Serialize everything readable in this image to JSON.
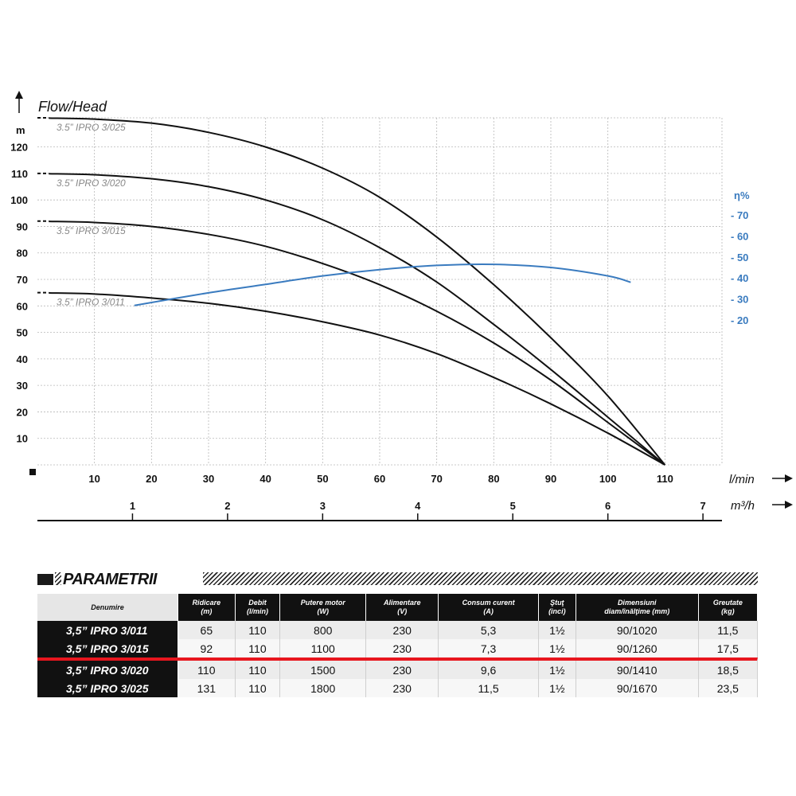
{
  "chart_data": {
    "type": "line",
    "title": "Flow/Head",
    "ylabel": "m",
    "y2label": "η%",
    "xlabel": "l/min",
    "x2label": "m³/h",
    "xlim": [
      0,
      120
    ],
    "ylim": [
      0,
      131
    ],
    "x_ticks": [
      10,
      20,
      30,
      40,
      50,
      60,
      70,
      80,
      90,
      100,
      110
    ],
    "y_ticks": [
      10,
      20,
      30,
      40,
      50,
      60,
      70,
      80,
      90,
      100,
      110,
      120
    ],
    "x2_ticks": [
      "1",
      "2",
      "3",
      "4",
      "5",
      "6",
      "7"
    ],
    "y2_ticks": [
      "- 70",
      "- 60",
      "- 50",
      "- 40",
      "- 30",
      "- 20"
    ],
    "grid": true,
    "series": [
      {
        "name": "3.5” IPRO 3/025",
        "shutoff": 131,
        "x": [
          0,
          10,
          20,
          30,
          40,
          50,
          60,
          70,
          80,
          90,
          100,
          110
        ],
        "y": [
          131,
          130.5,
          129,
          125.5,
          120,
          112,
          101,
          86,
          68,
          48,
          26,
          0
        ]
      },
      {
        "name": "3.5” IPRO 3/020",
        "shutoff": 110,
        "x": [
          0,
          10,
          20,
          30,
          40,
          50,
          60,
          70,
          80,
          90,
          100,
          110
        ],
        "y": [
          110,
          109.5,
          108,
          105,
          100,
          92.5,
          82,
          69,
          53,
          36,
          18,
          0
        ]
      },
      {
        "name": "3.5” IPRO 3/015",
        "shutoff": 92,
        "x": [
          0,
          10,
          20,
          30,
          40,
          50,
          60,
          70,
          80,
          90,
          100,
          110
        ],
        "y": [
          92,
          91.5,
          90,
          87,
          82.5,
          76,
          68,
          58,
          46,
          32,
          16,
          0
        ]
      },
      {
        "name": "3.5” IPRO 3/011",
        "shutoff": 65,
        "x": [
          0,
          10,
          20,
          30,
          40,
          50,
          60,
          70,
          80,
          90,
          100,
          110
        ],
        "y": [
          65,
          64.5,
          63,
          61,
          58,
          54,
          49,
          42,
          33,
          23,
          12,
          0
        ]
      }
    ],
    "efficiency": {
      "x": [
        17,
        30,
        40,
        50,
        60,
        70,
        80,
        90,
        100,
        104
      ],
      "eta": [
        30,
        36,
        40,
        44,
        47,
        49,
        49.5,
        48,
        44,
        41
      ]
    }
  },
  "params": {
    "title": "PARAMETRII",
    "headers": [
      {
        "l1": "Denumire",
        "l2": ""
      },
      {
        "l1": "Ridicare",
        "l2": "(m)"
      },
      {
        "l1": "Debit",
        "l2": "(l/min)"
      },
      {
        "l1": "Putere motor",
        "l2": "(W)"
      },
      {
        "l1": "Alimentare",
        "l2": "(V)"
      },
      {
        "l1": "Consum curent",
        "l2": "(A)"
      },
      {
        "l1": "Ştuţ",
        "l2": "(inci)"
      },
      {
        "l1": "Dimensiuni",
        "l2": "diam/înălţime (mm)"
      },
      {
        "l1": "Greutate",
        "l2": "(kg)"
      }
    ],
    "rows": [
      {
        "name": "3,5” IPRO 3/011",
        "values": [
          "65",
          "110",
          "800",
          "230",
          "5,3",
          "1½",
          "90/1020",
          "11,5"
        ]
      },
      {
        "name": "3,5” IPRO 3/015",
        "values": [
          "92",
          "110",
          "1100",
          "230",
          "7,3",
          "1½",
          "90/1260",
          "17,5"
        ]
      },
      {
        "name": "3,5” IPRO 3/020",
        "values": [
          "110",
          "110",
          "1500",
          "230",
          "9,6",
          "1½",
          "90/1410",
          "18,5"
        ]
      },
      {
        "name": "3,5” IPRO 3/025",
        "values": [
          "131",
          "110",
          "1800",
          "230",
          "11,5",
          "1½",
          "90/1670",
          "23,5"
        ]
      }
    ],
    "separator_after_row": 1,
    "separator_color": "#e8161e"
  },
  "colors": {
    "curve": "#111111",
    "efficiency": "#3a7bbf",
    "grid": "#b8b8b8",
    "label": "#888888"
  }
}
